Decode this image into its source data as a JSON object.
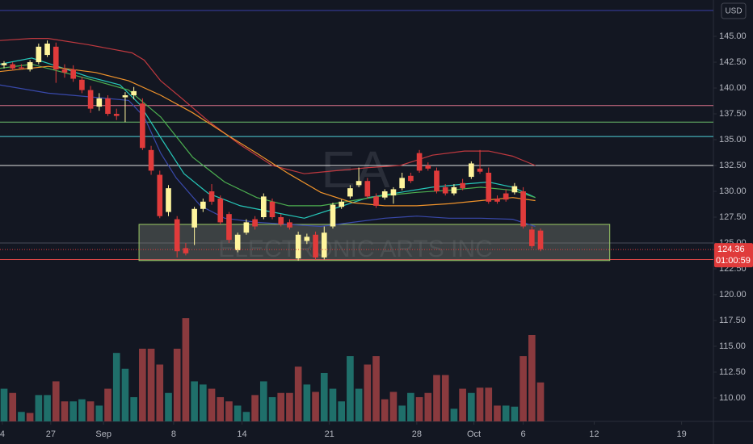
{
  "chart_data": {
    "type": "candlestick",
    "watermark": "EA",
    "watermark_sub": "ELECTRONIC ARTS INC",
    "currency": "USD",
    "last_price": {
      "value": 124.36,
      "label": "124.36"
    },
    "countdown": "01:00:59",
    "up_color": "#fff59d",
    "down_color": "#e03b3b",
    "ylim": [
      107.73,
      148.52
    ],
    "xlim": [
      -0.467,
      81.98
    ],
    "yticks": [
      {
        "value": 110,
        "label": "110.00"
      },
      {
        "value": 112.5,
        "label": "112.50"
      },
      {
        "value": 115,
        "label": "115.00"
      },
      {
        "value": 117.5,
        "label": "117.50"
      },
      {
        "value": 120,
        "label": "120.00"
      },
      {
        "value": 122.5,
        "label": "122.50"
      },
      {
        "value": 125,
        "label": "125.00"
      },
      {
        "value": 127.5,
        "label": "127.50"
      },
      {
        "value": 130,
        "label": "130.00"
      },
      {
        "value": 132.5,
        "label": "132.50"
      },
      {
        "value": 135,
        "label": "135.00"
      },
      {
        "value": 137.5,
        "label": "137.50"
      },
      {
        "value": 140,
        "label": "140.00"
      },
      {
        "value": 142.5,
        "label": "142.50"
      },
      {
        "value": 145,
        "label": "145.00"
      }
    ],
    "xticks": [
      {
        "value": -0.2,
        "label": "4"
      },
      {
        "value": 5.4,
        "label": "27"
      },
      {
        "value": 11.5,
        "label": "Sep"
      },
      {
        "value": 19.6,
        "label": "8"
      },
      {
        "value": 27.5,
        "label": "14"
      },
      {
        "value": 37.6,
        "label": "21"
      },
      {
        "value": 47.7,
        "label": "28"
      },
      {
        "value": 54.3,
        "label": "Oct"
      },
      {
        "value": 60,
        "label": "6"
      },
      {
        "value": 68.2,
        "label": "12"
      },
      {
        "value": 78.3,
        "label": "19"
      }
    ],
    "candles": [
      [
        142.2,
        142.6,
        141.9,
        142.4
      ],
      [
        142.3,
        142.5,
        141.7,
        141.9
      ],
      [
        142.0,
        142.3,
        141.8,
        141.9
      ],
      [
        141.8,
        142.7,
        141.6,
        142.5
      ],
      [
        142.5,
        144.3,
        142.3,
        144.0
      ],
      [
        143.2,
        144.6,
        143.0,
        144.3
      ],
      [
        144.0,
        144.4,
        140.5,
        141.8
      ],
      [
        141.8,
        142.3,
        141.0,
        141.5
      ],
      [
        141.8,
        142.2,
        140.6,
        140.9
      ],
      [
        140.8,
        141.1,
        139.5,
        139.8
      ],
      [
        139.8,
        140.2,
        137.6,
        138.0
      ],
      [
        138.2,
        139.5,
        137.8,
        139.0
      ],
      [
        139.0,
        139.3,
        137.3,
        137.5
      ],
      [
        137.5,
        138.0,
        136.9,
        137.3
      ],
      [
        139.1,
        139.6,
        136.7,
        139.3
      ],
      [
        139.3,
        140.1,
        138.9,
        139.7
      ],
      [
        138.5,
        139.0,
        134.0,
        134.2
      ],
      [
        134.0,
        134.4,
        131.6,
        132.0
      ],
      [
        131.6,
        132.0,
        127.4,
        127.6
      ],
      [
        128.0,
        130.6,
        127.6,
        130.3
      ],
      [
        127.3,
        127.6,
        123.6,
        124.2
      ],
      [
        124.5,
        125.0,
        123.8,
        124.0
      ],
      [
        126.5,
        128.5,
        124.8,
        128.3
      ],
      [
        128.3,
        129.3,
        128.0,
        129.0
      ],
      [
        130.0,
        130.7,
        128.7,
        129.0
      ],
      [
        129.3,
        129.6,
        126.8,
        127.0
      ],
      [
        127.8,
        128.0,
        125.0,
        125.3
      ],
      [
        124.3,
        126.0,
        124.1,
        125.8
      ],
      [
        126.0,
        127.3,
        125.8,
        127.0
      ],
      [
        127.3,
        127.6,
        126.3,
        126.6
      ],
      [
        127.5,
        129.8,
        127.3,
        129.5
      ],
      [
        129.0,
        129.3,
        127.3,
        127.5
      ],
      [
        127.5,
        127.8,
        126.6,
        126.8
      ],
      [
        127.0,
        127.3,
        126.3,
        126.5
      ],
      [
        123.5,
        126.1,
        123.3,
        125.8
      ],
      [
        125.2,
        125.9,
        124.9,
        125.6
      ],
      [
        125.8,
        126.1,
        123.4,
        123.6
      ],
      [
        123.6,
        126.6,
        123.4,
        126.0
      ],
      [
        126.6,
        128.9,
        126.4,
        128.7
      ],
      [
        128.5,
        129.2,
        128.3,
        129.0
      ],
      [
        129.5,
        130.6,
        129.3,
        130.3
      ],
      [
        130.6,
        132.3,
        130.4,
        131.0
      ],
      [
        131.0,
        131.3,
        129.3,
        129.5
      ],
      [
        129.5,
        129.8,
        128.4,
        128.6
      ],
      [
        129.4,
        130.2,
        129.2,
        130.0
      ],
      [
        129.6,
        130.4,
        128.8,
        130.2
      ],
      [
        130.3,
        131.8,
        130.1,
        131.3
      ],
      [
        131.5,
        131.8,
        130.8,
        131.0
      ],
      [
        133.7,
        134.0,
        131.8,
        132.0
      ],
      [
        132.5,
        132.8,
        132.0,
        132.2
      ],
      [
        132.0,
        132.3,
        129.8,
        130.0
      ],
      [
        130.4,
        130.7,
        129.6,
        129.8
      ],
      [
        129.8,
        130.7,
        129.6,
        130.4
      ],
      [
        130.8,
        131.2,
        130.1,
        130.3
      ],
      [
        131.4,
        132.9,
        131.2,
        132.7
      ],
      [
        132.2,
        134.0,
        131.7,
        131.9
      ],
      [
        131.8,
        132.3,
        128.8,
        129.0
      ],
      [
        129.3,
        129.6,
        128.8,
        129.0
      ],
      [
        129.8,
        130.2,
        129.0,
        129.2
      ],
      [
        129.9,
        130.8,
        129.7,
        130.5
      ],
      [
        130.0,
        130.4,
        126.4,
        126.6
      ],
      [
        126.3,
        126.6,
        124.5,
        124.7
      ],
      [
        126.2,
        126.4,
        124.2,
        124.4
      ]
    ],
    "volume": {
      "vlim": [
        0,
        400
      ],
      "colors": [
        "#8a3a3e",
        "#1f6f6a"
      ],
      "values": [
        31,
        27,
        9,
        8,
        25,
        25,
        38,
        19,
        19,
        21,
        19,
        15,
        31,
        65,
        50,
        23,
        69,
        69,
        54,
        27,
        69,
        98,
        38,
        35,
        31,
        23,
        19,
        15,
        9,
        25,
        38,
        23,
        27,
        27,
        52,
        35,
        28,
        46,
        31,
        19,
        62,
        31,
        54,
        62,
        21,
        28,
        15,
        27,
        23,
        27,
        44,
        44,
        12,
        31,
        27,
        32,
        32,
        15,
        15,
        14,
        62,
        82,
        37
      ],
      "up": [
        1,
        0,
        1,
        0,
        1,
        1,
        0,
        0,
        1,
        1,
        0,
        1,
        0,
        1,
        1,
        1,
        0,
        0,
        0,
        1,
        0,
        0,
        1,
        1,
        0,
        0,
        0,
        1,
        1,
        0,
        1,
        1,
        0,
        0,
        0,
        1,
        0,
        1,
        1,
        1,
        1,
        1,
        0,
        0,
        0,
        0,
        1,
        1,
        0,
        0,
        0,
        0,
        1,
        0,
        1,
        0,
        0,
        0,
        1,
        1,
        0,
        0,
        0
      ]
    },
    "series": [
      {
        "color": "#c0393f",
        "x": [
          -0.5,
          3.2,
          5.1,
          9.7,
          14.8,
          16.2,
          18.1,
          20.4,
          23.6,
          27.3,
          31.0,
          34.7,
          38.4,
          42.1,
          45.8,
          49.5,
          53.2,
          56.0,
          58.8,
          61.4
        ],
        "values": [
          144.6,
          144.8,
          144.8,
          144.2,
          143.4,
          142.7,
          140.7,
          139.1,
          136.8,
          134.5,
          132.5,
          131.7,
          132.0,
          132.3,
          132.5,
          133.5,
          133.9,
          133.9,
          133.4,
          132.5
        ]
      },
      {
        "color": "#26c6b8",
        "x": [
          -0.5,
          3.2,
          6.9,
          9.7,
          13.4,
          15.7,
          18.1,
          20.8,
          23.6,
          27.3,
          31.0,
          34.7,
          38.4,
          42.1,
          45.8,
          49.5,
          53.2,
          56.0,
          58.8,
          61.4
        ],
        "values": [
          142.3,
          142.9,
          141.9,
          141.1,
          140.3,
          138.4,
          135.2,
          131.7,
          129.8,
          128.6,
          128.0,
          127.4,
          128.4,
          129.4,
          129.9,
          130.4,
          130.7,
          130.9,
          130.4,
          129.4
        ]
      },
      {
        "color": "#4caf50",
        "x": [
          -0.5,
          3.2,
          6.9,
          10.6,
          14.4,
          18.1,
          21.8,
          25.5,
          29.2,
          32.9,
          36.6,
          40.3,
          44.0,
          47.7,
          51.4,
          55.1,
          58.8,
          61.4
        ],
        "values": [
          141.9,
          142.3,
          141.5,
          140.7,
          139.8,
          137.2,
          133.3,
          130.9,
          129.4,
          128.6,
          128.6,
          129.1,
          129.6,
          129.9,
          130.1,
          130.4,
          130.1,
          129.4
        ]
      },
      {
        "color": "#f0932b",
        "x": [
          -0.5,
          5.1,
          10.6,
          14.4,
          18.1,
          21.8,
          25.5,
          29.2,
          32.9,
          36.6,
          40.3,
          44.0,
          47.7,
          51.4,
          55.1,
          58.8,
          61.4
        ],
        "values": [
          141.6,
          142.1,
          141.5,
          140.7,
          139.3,
          137.6,
          135.6,
          133.7,
          131.7,
          129.9,
          128.9,
          128.6,
          128.6,
          128.8,
          129.1,
          129.4,
          129.1
        ]
      },
      {
        "color": "#3949ab",
        "x": [
          -0.5,
          5.1,
          10.6,
          14.4,
          16.2,
          18.1,
          19.9,
          22.7,
          25.5,
          29.2,
          32.9,
          36.6,
          40.3,
          44.0,
          47.7,
          51.4,
          55.1,
          58.8,
          61.4
        ],
        "values": [
          140.3,
          139.5,
          139.1,
          138.8,
          137.2,
          133.7,
          131.3,
          128.6,
          127.4,
          127.0,
          126.8,
          126.6,
          127.0,
          127.4,
          127.6,
          127.4,
          127.4,
          127.3,
          126.6
        ]
      }
    ],
    "levels": [
      {
        "value": 147.5,
        "color": "#3a3fa8"
      },
      {
        "value": 138.3,
        "color": "#d9708a"
      },
      {
        "value": 136.7,
        "color": "#6dbf6d"
      },
      {
        "value": 135.3,
        "color": "#4fd1d9"
      },
      {
        "value": 132.5,
        "color": "#e0e0e0"
      },
      {
        "value": 125.0,
        "color": "#4a4e5a"
      },
      {
        "value": 123.4,
        "color": "#e04848"
      }
    ],
    "zone": {
      "x": [
        15.6,
        70.0
      ],
      "y": [
        123.3,
        126.8
      ],
      "color": "#8a8f80",
      "border": "#9ccc65"
    }
  }
}
